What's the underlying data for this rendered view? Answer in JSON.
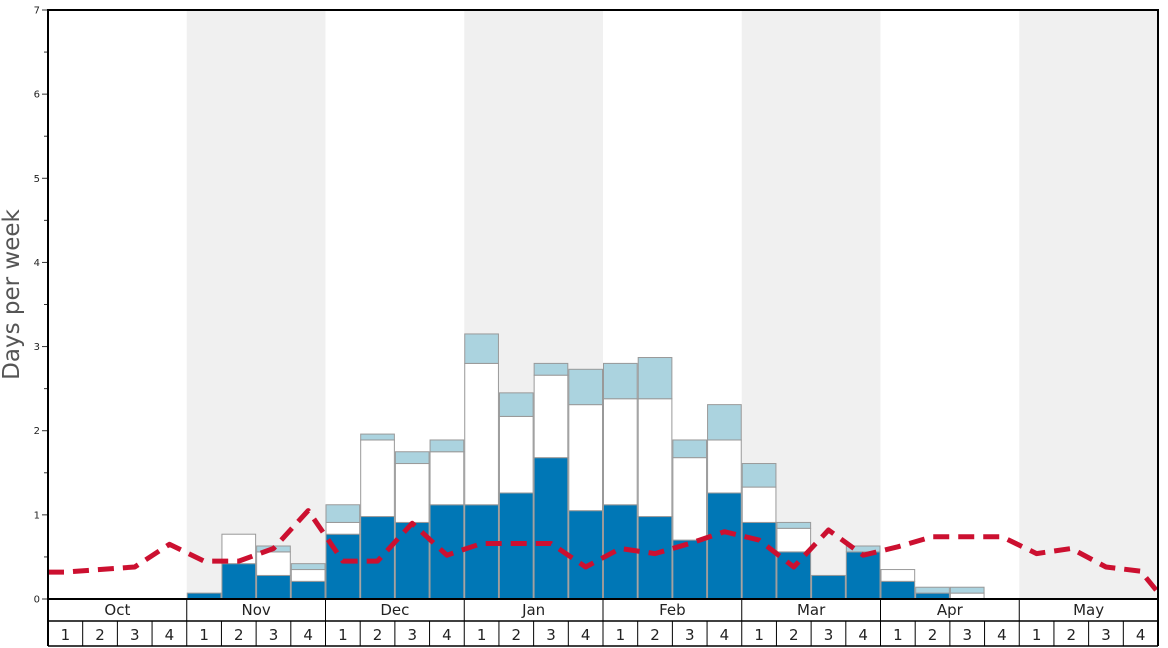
{
  "chart_data": {
    "type": "bar",
    "subtype": "stacked-bar-with-line",
    "ylabel": "Days per week",
    "ylim": [
      0,
      7
    ],
    "yticks": [
      "0",
      "1",
      "2",
      "3",
      "4",
      "5",
      "6",
      "7"
    ],
    "months": [
      "Oct",
      "Nov",
      "Dec",
      "Jan",
      "Feb",
      "Mar",
      "Apr",
      "May"
    ],
    "week_labels": [
      "1",
      "2",
      "3",
      "4"
    ],
    "colors": {
      "bar_dark": "#0077b6",
      "bar_white": "#ffffff",
      "bar_light": "#abd3df",
      "bar_edge": "#999999",
      "line": "#cc1030",
      "band_shaded": "#f0f0f0"
    },
    "shaded_months": [
      "Nov",
      "Jan",
      "Mar",
      "May"
    ],
    "series": [
      {
        "key": "dark",
        "values": [
          0,
          0,
          0,
          0,
          0.07,
          0.42,
          0.28,
          0.21,
          0.77,
          0.98,
          0.91,
          1.12,
          1.12,
          1.26,
          1.68,
          1.05,
          1.12,
          0.98,
          0.7,
          1.26,
          0.91,
          0.56,
          0.28,
          0.56,
          0.21,
          0.07,
          0,
          0,
          0,
          0,
          0,
          0
        ]
      },
      {
        "key": "white",
        "values": [
          0,
          0,
          0,
          0,
          0,
          0.35,
          0.28,
          0.14,
          0.14,
          0.91,
          0.7,
          0.63,
          1.68,
          0.91,
          0.98,
          1.26,
          1.26,
          1.4,
          0.98,
          0.63,
          0.42,
          0.28,
          0,
          0,
          0.14,
          0,
          0.07,
          0,
          0,
          0,
          0,
          0
        ]
      },
      {
        "key": "light",
        "values": [
          0,
          0,
          0,
          0,
          0,
          0,
          0.07,
          0.07,
          0.21,
          0.07,
          0.14,
          0.14,
          0.35,
          0.28,
          0.14,
          0.42,
          0.42,
          0.49,
          0.21,
          0.42,
          0.28,
          0.07,
          0,
          0.07,
          0,
          0.07,
          0.07,
          0,
          0,
          0,
          0,
          0
        ]
      },
      {
        "key": "line",
        "values": [
          0.32,
          0.35,
          0.38,
          0.65,
          0.45,
          0.45,
          0.6,
          1.05,
          0.45,
          0.45,
          0.9,
          0.52,
          0.66,
          0.66,
          0.66,
          0.38,
          0.6,
          0.54,
          0.66,
          0.8,
          0.7,
          0.38,
          0.82,
          0.52,
          0.62,
          0.74,
          0.74,
          0.74,
          0.54,
          0.6,
          0.38,
          0.33
        ]
      }
    ]
  }
}
